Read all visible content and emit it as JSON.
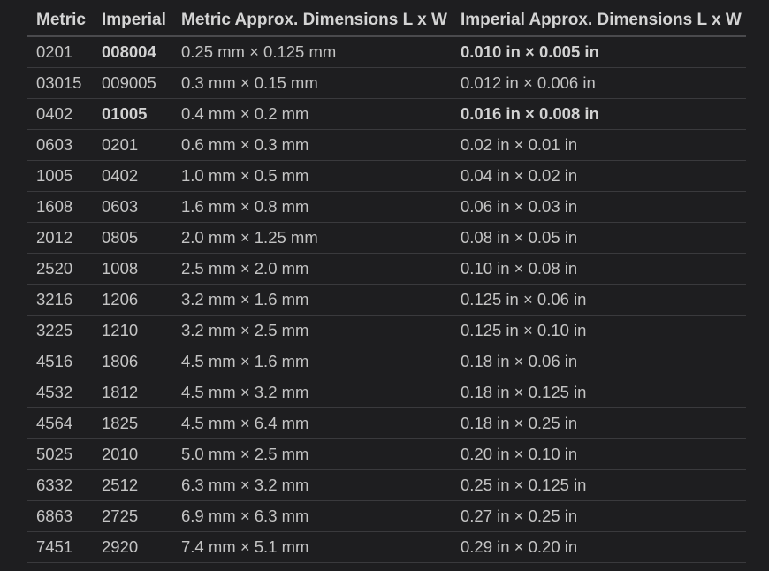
{
  "headers": {
    "metric": "Metric",
    "imperial": "Imperial",
    "metric_dims": "Metric Approx. Dimensions L x W",
    "imperial_dims": "Imperial Approx. Dimensions L x W"
  },
  "rows": [
    {
      "metric": "0201",
      "imperial": "008004",
      "metric_dims": "0.25 mm × 0.125 mm",
      "imperial_dims": "0.010 in × 0.005 in",
      "bold_imperial": true,
      "bold_imperial_dims": true
    },
    {
      "metric": "03015",
      "imperial": "009005",
      "metric_dims": "0.3 mm × 0.15 mm",
      "imperial_dims": "0.012 in × 0.006 in",
      "bold_imperial": false,
      "bold_imperial_dims": false
    },
    {
      "metric": "0402",
      "imperial": "01005",
      "metric_dims": "0.4 mm × 0.2 mm",
      "imperial_dims": "0.016 in × 0.008 in",
      "bold_imperial": true,
      "bold_imperial_dims": true
    },
    {
      "metric": "0603",
      "imperial": "0201",
      "metric_dims": "0.6 mm × 0.3 mm",
      "imperial_dims": "0.02 in × 0.01 in",
      "bold_imperial": false,
      "bold_imperial_dims": false
    },
    {
      "metric": "1005",
      "imperial": "0402",
      "metric_dims": "1.0 mm × 0.5 mm",
      "imperial_dims": "0.04 in × 0.02 in",
      "bold_imperial": false,
      "bold_imperial_dims": false
    },
    {
      "metric": "1608",
      "imperial": "0603",
      "metric_dims": "1.6 mm × 0.8 mm",
      "imperial_dims": "0.06 in × 0.03 in",
      "bold_imperial": false,
      "bold_imperial_dims": false
    },
    {
      "metric": "2012",
      "imperial": "0805",
      "metric_dims": "2.0 mm × 1.25 mm",
      "imperial_dims": "0.08 in × 0.05 in",
      "bold_imperial": false,
      "bold_imperial_dims": false
    },
    {
      "metric": "2520",
      "imperial": "1008",
      "metric_dims": "2.5 mm × 2.0 mm",
      "imperial_dims": "0.10 in × 0.08 in",
      "bold_imperial": false,
      "bold_imperial_dims": false
    },
    {
      "metric": "3216",
      "imperial": "1206",
      "metric_dims": "3.2 mm × 1.6 mm",
      "imperial_dims": "0.125 in × 0.06 in",
      "bold_imperial": false,
      "bold_imperial_dims": false
    },
    {
      "metric": "3225",
      "imperial": "1210",
      "metric_dims": "3.2 mm × 2.5 mm",
      "imperial_dims": "0.125 in × 0.10 in",
      "bold_imperial": false,
      "bold_imperial_dims": false
    },
    {
      "metric": "4516",
      "imperial": "1806",
      "metric_dims": "4.5 mm × 1.6 mm",
      "imperial_dims": "0.18 in × 0.06 in",
      "bold_imperial": false,
      "bold_imperial_dims": false
    },
    {
      "metric": "4532",
      "imperial": "1812",
      "metric_dims": "4.5 mm × 3.2 mm",
      "imperial_dims": "0.18 in × 0.125 in",
      "bold_imperial": false,
      "bold_imperial_dims": false
    },
    {
      "metric": "4564",
      "imperial": "1825",
      "metric_dims": "4.5 mm × 6.4 mm",
      "imperial_dims": "0.18 in × 0.25 in",
      "bold_imperial": false,
      "bold_imperial_dims": false
    },
    {
      "metric": "5025",
      "imperial": "2010",
      "metric_dims": "5.0 mm × 2.5 mm",
      "imperial_dims": "0.20 in × 0.10 in",
      "bold_imperial": false,
      "bold_imperial_dims": false
    },
    {
      "metric": "6332",
      "imperial": "2512",
      "metric_dims": "6.3 mm × 3.2 mm",
      "imperial_dims": "0.25 in × 0.125 in",
      "bold_imperial": false,
      "bold_imperial_dims": false
    },
    {
      "metric": "6863",
      "imperial": "2725",
      "metric_dims": "6.9 mm × 6.3 mm",
      "imperial_dims": "0.27 in × 0.25 in",
      "bold_imperial": false,
      "bold_imperial_dims": false
    },
    {
      "metric": "7451",
      "imperial": "2920",
      "metric_dims": "7.4 mm × 5.1 mm",
      "imperial_dims": "0.29 in × 0.20 in",
      "bold_imperial": false,
      "bold_imperial_dims": false
    }
  ]
}
